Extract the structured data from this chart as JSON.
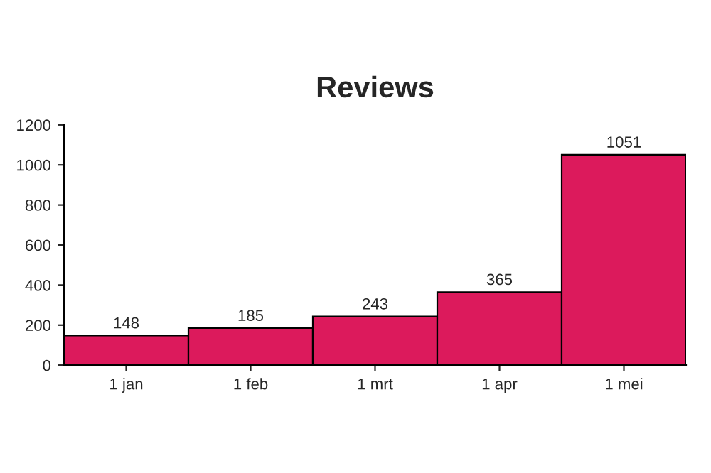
{
  "chart_data": {
    "type": "bar",
    "title": "Reviews",
    "categories": [
      "1 jan",
      "1 feb",
      "1 mrt",
      "1 apr",
      "1 mei"
    ],
    "values": [
      148,
      185,
      243,
      365,
      1051
    ],
    "color": "#dc1a5c",
    "ylim": [
      0,
      1200
    ],
    "yticks": [
      0,
      200,
      400,
      600,
      800,
      1000,
      1200
    ],
    "data_labels": true,
    "grid": false,
    "legend": false
  }
}
